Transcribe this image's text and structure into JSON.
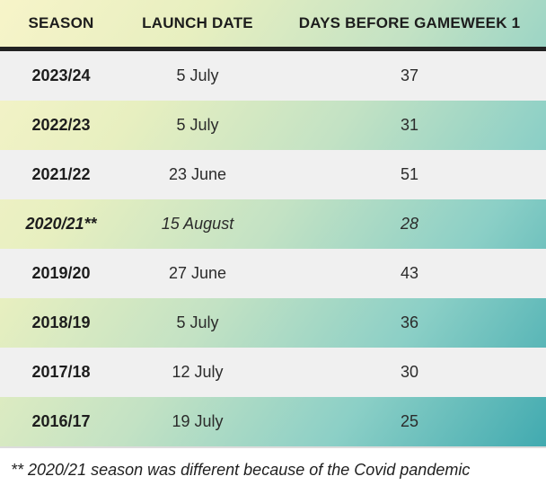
{
  "chart_data": {
    "type": "table",
    "columns": [
      "SEASON",
      "LAUNCH DATE",
      "DAYS BEFORE GAMEWEEK 1"
    ],
    "rows": [
      [
        "2023/24",
        "5 July",
        37
      ],
      [
        "2022/23",
        "5 July",
        31
      ],
      [
        "2021/22",
        "23 June",
        51
      ],
      [
        "2020/21**",
        "15 August",
        28
      ],
      [
        "2019/20",
        "27 June",
        43
      ],
      [
        "2018/19",
        "5 July",
        36
      ],
      [
        "2017/18",
        "12 July",
        30
      ],
      [
        "2016/17",
        "19 July",
        25
      ]
    ],
    "footnote": "** 2020/21 season was different because of the Covid pandemic"
  },
  "table": {
    "headers": {
      "season": "SEASON",
      "launch_date": "LAUNCH DATE",
      "days_before_gw1": "DAYS BEFORE GAMEWEEK 1"
    },
    "rows": [
      {
        "season": "2023/24",
        "launch_date": "5 July",
        "days_before_gw1": "37"
      },
      {
        "season": "2022/23",
        "launch_date": "5 July",
        "days_before_gw1": "31"
      },
      {
        "season": "2021/22",
        "launch_date": "23 June",
        "days_before_gw1": "51"
      },
      {
        "season": "2020/21**",
        "launch_date": "15 August",
        "days_before_gw1": "28"
      },
      {
        "season": "2019/20",
        "launch_date": "27 June",
        "days_before_gw1": "43"
      },
      {
        "season": "2018/19",
        "launch_date": "5 July",
        "days_before_gw1": "36"
      },
      {
        "season": "2017/18",
        "launch_date": "12 July",
        "days_before_gw1": "30"
      },
      {
        "season": "2016/17",
        "launch_date": "19 July",
        "days_before_gw1": "25"
      }
    ],
    "footnote": "** 2020/21 season was different because of the Covid pandemic"
  },
  "colors": {
    "gradient_start": "#f7f4c9",
    "gradient_end": "#41aab0",
    "row_gray": "#f0f0f0",
    "header_border": "#222222",
    "text": "#1d1d1d"
  }
}
